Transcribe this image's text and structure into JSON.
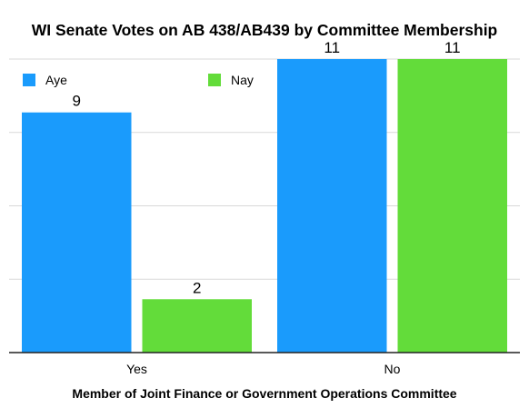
{
  "chart_data": {
    "type": "bar",
    "title": "WI Senate Votes on AB 438/AB439 by Committee Membership",
    "xlabel": "Member of Joint Finance or Government Operations Committee",
    "ylabel": "",
    "categories": [
      "Yes",
      "No"
    ],
    "series": [
      {
        "name": "Aye",
        "values": [
          9,
          11
        ],
        "color": "#1a9bfc"
      },
      {
        "name": "Nay",
        "values": [
          2,
          11
        ],
        "color": "#63dc3a"
      }
    ],
    "ylim": [
      0,
      11
    ],
    "grid": true,
    "legend": "top-left"
  }
}
